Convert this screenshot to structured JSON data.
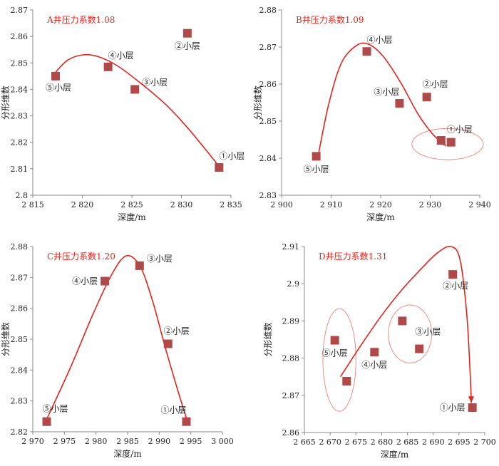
{
  "chart_data": [
    {
      "type": "scatter",
      "title": "A井压力系数1.08",
      "xlabel": "深度/m",
      "ylabel": "分形维数",
      "xlim": [
        2815,
        2835
      ],
      "xticks": [
        2815,
        2820,
        2825,
        2830,
        2835
      ],
      "xtick_labels": [
        "2 815",
        "2 820",
        "2 825",
        "2 830",
        "2 835"
      ],
      "ylim": [
        2.8,
        2.87
      ],
      "yticks": [
        2.8,
        2.81,
        2.82,
        2.83,
        2.84,
        2.85,
        2.86,
        2.87
      ],
      "ytick_labels": [
        "2.8",
        "2.81",
        "2.82",
        "2.83",
        "2.84",
        "2.85",
        "2.86",
        "2.87"
      ],
      "points": [
        {
          "x": 2817.3,
          "y": 2.845,
          "label": "⑤小层",
          "anchor": "below-left"
        },
        {
          "x": 2822.6,
          "y": 2.8485,
          "label": "④小层",
          "anchor": "above"
        },
        {
          "x": 2825.3,
          "y": 2.84,
          "label": "③小层",
          "anchor": "right"
        },
        {
          "x": 2830.6,
          "y": 2.8612,
          "label": "②小层",
          "anchor": "below"
        },
        {
          "x": 2833.8,
          "y": 2.8105,
          "label": "①小层",
          "anchor": "above"
        }
      ],
      "trend": [
        [
          2817.3,
          2.8465
        ],
        [
          2818.5,
          2.851
        ],
        [
          2820.0,
          2.853
        ],
        [
          2821.5,
          2.8525
        ],
        [
          2823.5,
          2.849
        ],
        [
          2826.0,
          2.842
        ],
        [
          2828.5,
          2.834
        ],
        [
          2830.5,
          2.826
        ],
        [
          2832.5,
          2.817
        ],
        [
          2834.2,
          2.809
        ]
      ],
      "ellipses": []
    },
    {
      "type": "scatter",
      "title": "B井压力系数1.09",
      "xlabel": "深度/m",
      "ylabel": "分形维数",
      "xlim": [
        2900,
        2940
      ],
      "xticks": [
        2900,
        2910,
        2920,
        2930,
        2940
      ],
      "xtick_labels": [
        "2 900",
        "2 910",
        "2 920",
        "2 930",
        "2 940"
      ],
      "ylim": [
        2.83,
        2.88
      ],
      "yticks": [
        2.83,
        2.84,
        2.85,
        2.86,
        2.87,
        2.88
      ],
      "ytick_labels": [
        "2.83",
        "2.84",
        "2.85",
        "2.86",
        "2.87",
        "2.88"
      ],
      "points": [
        {
          "x": 2907.0,
          "y": 2.8405,
          "label": "⑤小层",
          "anchor": "below"
        },
        {
          "x": 2917.2,
          "y": 2.8688,
          "label": "④小层",
          "anchor": "above"
        },
        {
          "x": 2923.8,
          "y": 2.8548,
          "label": "③小层",
          "anchor": "above-left"
        },
        {
          "x": 2929.3,
          "y": 2.8565,
          "label": "②小层",
          "anchor": "above-right"
        },
        {
          "x": 2932.2,
          "y": 2.8448,
          "label": "",
          "anchor": "none"
        },
        {
          "x": 2934.2,
          "y": 2.8443,
          "label": "①小层",
          "anchor": "above-right"
        }
      ],
      "trend": [
        [
          2907.5,
          2.8415
        ],
        [
          2909.5,
          2.8545
        ],
        [
          2912.0,
          2.8655
        ],
        [
          2915.0,
          2.8703
        ],
        [
          2917.5,
          2.8708
        ],
        [
          2920.5,
          2.8675
        ],
        [
          2924.0,
          2.8605
        ],
        [
          2927.5,
          2.852
        ],
        [
          2930.5,
          2.8465
        ],
        [
          2933.2,
          2.8433
        ]
      ],
      "ellipses": [
        {
          "cx": 2933.5,
          "cy": 2.8438,
          "rx": 7.2,
          "ry": 0.0042
        }
      ]
    },
    {
      "type": "scatter",
      "title": "C井压力系数1.20",
      "xlabel": "深度/m",
      "ylabel": "分形维数",
      "xlim": [
        2970,
        3000
      ],
      "xticks": [
        2970,
        2975,
        2980,
        2985,
        2990,
        2995,
        3000
      ],
      "xtick_labels": [
        "2 970",
        "2 975",
        "2 980",
        "2 985",
        "2 990",
        "2 995",
        "3 000"
      ],
      "ylim": [
        2.82,
        2.88
      ],
      "yticks": [
        2.82,
        2.83,
        2.84,
        2.85,
        2.86,
        2.87,
        2.88
      ],
      "ytick_labels": [
        "2.82",
        "2.83",
        "2.84",
        "2.85",
        "2.86",
        "2.87",
        "2.88"
      ],
      "points": [
        {
          "x": 2972.2,
          "y": 2.8233,
          "label": "⑤小层",
          "anchor": "above-right"
        },
        {
          "x": 2981.4,
          "y": 2.8688,
          "label": "④小层",
          "anchor": "left"
        },
        {
          "x": 2986.9,
          "y": 2.8738,
          "label": "③小层",
          "anchor": "right"
        },
        {
          "x": 2991.4,
          "y": 2.8485,
          "label": "②小层",
          "anchor": "above-right"
        },
        {
          "x": 2994.3,
          "y": 2.8233,
          "label": "①小层",
          "anchor": "above-left"
        }
      ],
      "trend": [
        [
          2972.3,
          2.8245
        ],
        [
          2976.0,
          2.841
        ],
        [
          2979.5,
          2.858
        ],
        [
          2982.5,
          2.871
        ],
        [
          2984.8,
          2.877
        ],
        [
          2987.0,
          2.8735
        ],
        [
          2989.0,
          2.862
        ],
        [
          2991.0,
          2.847
        ],
        [
          2993.0,
          2.833
        ],
        [
          2994.6,
          2.8225
        ]
      ],
      "ellipses": []
    },
    {
      "type": "scatter",
      "title": "D井压力系数1.31",
      "xlabel": "深度/m",
      "ylabel": "分形维数",
      "xlim": [
        2665,
        2700
      ],
      "xticks": [
        2665,
        2670,
        2675,
        2680,
        2685,
        2690,
        2695,
        2700
      ],
      "xtick_labels": [
        "2 665",
        "2 670",
        "2 675",
        "2 680",
        "2 685",
        "2 690",
        "2 695",
        "2 700"
      ],
      "ylim": [
        2.86,
        2.91
      ],
      "yticks": [
        2.86,
        2.87,
        2.88,
        2.89,
        2.9,
        2.91
      ],
      "ytick_labels": [
        "2.86",
        "2.87",
        "2.88",
        "2.89",
        "2.9",
        "2.91"
      ],
      "points": [
        {
          "x": 2670.9,
          "y": 2.8848,
          "label": "⑤小层",
          "anchor": "below"
        },
        {
          "x": 2673.2,
          "y": 2.8738,
          "label": "",
          "anchor": "none"
        },
        {
          "x": 2678.6,
          "y": 2.8816,
          "label": "④小层",
          "anchor": "below"
        },
        {
          "x": 2684.0,
          "y": 2.89,
          "label": "",
          "anchor": "none"
        },
        {
          "x": 2687.3,
          "y": 2.8825,
          "label": "③小层",
          "anchor": "above-right-far"
        },
        {
          "x": 2693.8,
          "y": 2.9025,
          "label": "②小层",
          "anchor": "below-left"
        },
        {
          "x": 2697.6,
          "y": 2.8667,
          "label": "①小层",
          "anchor": "left"
        }
      ],
      "trend": [
        [
          2672.0,
          2.875
        ],
        [
          2676.0,
          2.8835
        ],
        [
          2680.0,
          2.8915
        ],
        [
          2684.0,
          2.8985
        ],
        [
          2688.0,
          2.9045
        ],
        [
          2691.0,
          2.9085
        ],
        [
          2693.5,
          2.91
        ],
        [
          2695.2,
          2.9065
        ],
        [
          2696.5,
          2.892
        ],
        [
          2697.2,
          2.875
        ],
        [
          2697.4,
          2.868
        ]
      ],
      "ellipses": [
        {
          "cx": 2671.8,
          "cy": 2.8795,
          "rx": 3.2,
          "ry": 0.0138
        },
        {
          "cx": 2685.5,
          "cy": 2.8865,
          "rx": 4.2,
          "ry": 0.0078
        }
      ]
    }
  ]
}
